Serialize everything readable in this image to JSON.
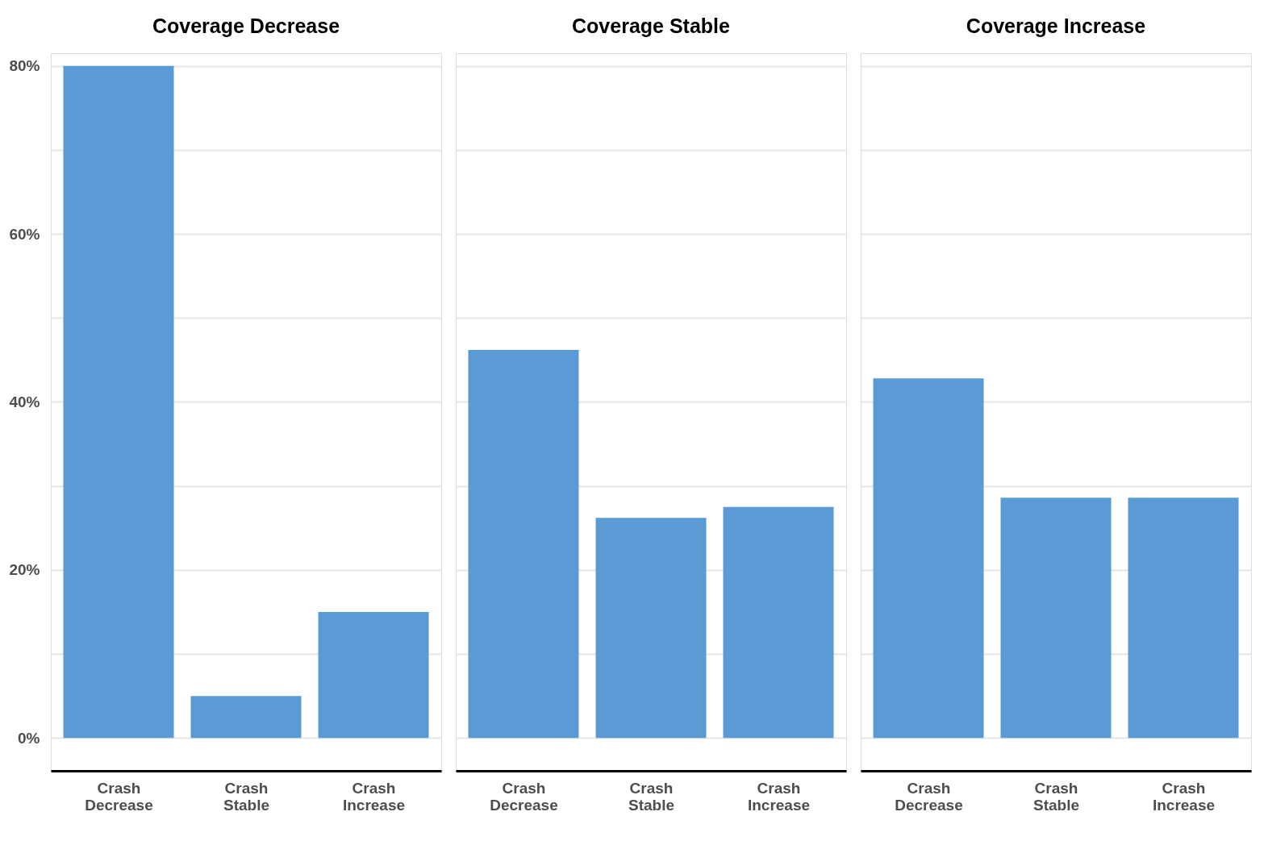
{
  "chart_data": [
    {
      "type": "bar",
      "title": "Coverage Decrease",
      "categories": [
        "Crash Decrease",
        "Crash Stable",
        "Crash Increase"
      ],
      "values": [
        80,
        5,
        15
      ],
      "color": "#5b9bd5",
      "ylim": [
        -3.9,
        81.5
      ],
      "yticks": [
        {
          "value": 0,
          "label": "0%"
        },
        {
          "value": 10,
          "label": null
        },
        {
          "value": 20,
          "label": "20%"
        },
        {
          "value": 30,
          "label": null
        },
        {
          "value": 40,
          "label": "40%"
        },
        {
          "value": 50,
          "label": null
        },
        {
          "value": 60,
          "label": "60%"
        },
        {
          "value": 70,
          "label": null
        },
        {
          "value": 80,
          "label": "80%"
        }
      ],
      "grid": "y"
    },
    {
      "type": "bar",
      "title": "Coverage Stable",
      "categories": [
        "Crash Decrease",
        "Crash Stable",
        "Crash Increase"
      ],
      "values": [
        46.2,
        26.2,
        27.5
      ],
      "color": "#5b9bd5",
      "ylim": [
        -3.9,
        81.5
      ],
      "yticks": [
        0,
        10,
        20,
        30,
        40,
        50,
        60,
        70,
        80
      ],
      "grid": "y",
      "tick_labels": "x"
    },
    {
      "type": "bar",
      "title": "Coverage Increase",
      "categories": [
        "Crash Decrease",
        "Crash Stable",
        "Crash Increase"
      ],
      "values": [
        42.8,
        28.6,
        28.6
      ],
      "color": "#5b9bd5",
      "ylim": [
        -3.9,
        81.5
      ],
      "yticks": [
        0,
        10,
        20,
        30,
        40,
        50,
        60,
        70,
        80
      ],
      "grid": "y",
      "tick_labels": "x"
    }
  ]
}
